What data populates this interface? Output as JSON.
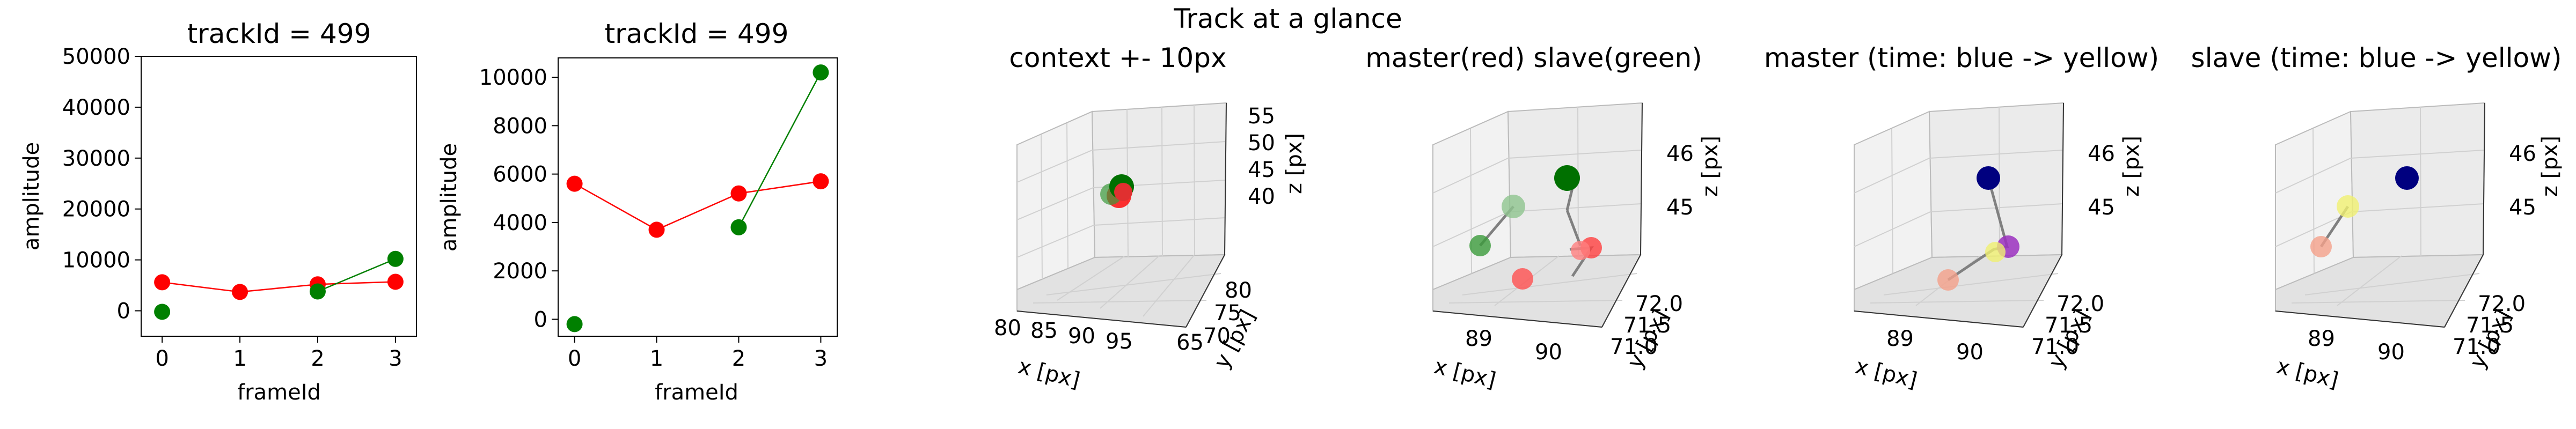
{
  "figure": {
    "suptitle": "Track at a glance"
  },
  "chart_data": [
    {
      "type": "line",
      "title": "trackId = 499",
      "xlabel": "frameId",
      "ylabel": "amplitude",
      "xticks": [
        "0",
        "1",
        "2",
        "3"
      ],
      "yticks": [
        "0",
        "10000",
        "20000",
        "30000",
        "40000",
        "50000"
      ],
      "xlim": [
        -0.27,
        3.27
      ],
      "ylim": [
        -5000,
        50000
      ],
      "series": [
        {
          "color": "#ff0000",
          "x": [
            0,
            1,
            2,
            3
          ],
          "y": [
            5600,
            3700,
            5200,
            5700
          ]
        },
        {
          "color": "#008000",
          "x": [
            0,
            2,
            3
          ],
          "y": [
            -200,
            3800,
            10200
          ],
          "line_from_index": 1
        }
      ]
    },
    {
      "type": "line",
      "title": "trackId = 499",
      "xlabel": "frameId",
      "ylabel": "amplitude",
      "xticks": [
        "0",
        "1",
        "2",
        "3"
      ],
      "yticks": [
        "0",
        "2000",
        "4000",
        "6000",
        "8000",
        "10000"
      ],
      "xlim": [
        -0.2,
        3.2
      ],
      "ylim": [
        -700,
        10800
      ],
      "series": [
        {
          "color": "#ff0000",
          "x": [
            0,
            1,
            2,
            3
          ],
          "y": [
            5600,
            3700,
            5200,
            5700
          ]
        },
        {
          "color": "#008000",
          "x": [
            0,
            2,
            3
          ],
          "y": [
            -200,
            3800,
            10200
          ],
          "line_from_index": 1
        }
      ]
    },
    {
      "type": "scatter",
      "title": "context +- 10px",
      "xlabel": "x [px]",
      "ylabel": "y [px]",
      "zlabel": "z [px]",
      "xticks": [
        "80",
        "85",
        "90",
        "95"
      ],
      "yticks": [
        "65",
        "70",
        "75",
        "80"
      ],
      "zticks": [
        "40",
        "45",
        "50",
        "55"
      ]
    },
    {
      "type": "scatter",
      "title": "master(red) slave(green)",
      "xlabel": "x [px]",
      "ylabel": "y [px]",
      "zlabel": "z [px]",
      "xticks": [
        "89",
        "90"
      ],
      "yticks": [
        "71.0",
        "71.5",
        "72.0"
      ],
      "zticks": [
        "45",
        "46"
      ]
    },
    {
      "type": "scatter",
      "title": "master (time: blue -> yellow)",
      "xlabel": "x [px]",
      "ylabel": "y [px]",
      "zlabel": "z [px]",
      "xticks": [
        "89",
        "90"
      ],
      "yticks": [
        "71.0",
        "71.5",
        "72.0"
      ],
      "zticks": [
        "45",
        "46"
      ]
    },
    {
      "type": "scatter",
      "title": "slave (time: blue -> yellow)",
      "xlabel": "x [px]",
      "ylabel": "y [px]",
      "zlabel": "z [px]",
      "xticks": [
        "89",
        "90"
      ],
      "yticks": [
        "71.0",
        "71.5",
        "72.0"
      ],
      "zticks": [
        "45",
        "46"
      ]
    }
  ]
}
